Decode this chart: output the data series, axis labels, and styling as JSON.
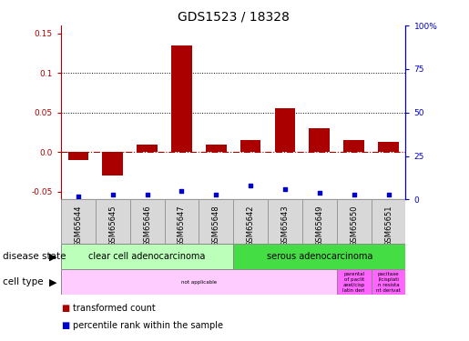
{
  "title": "GDS1523 / 18328",
  "samples": [
    "GSM65644",
    "GSM65645",
    "GSM65646",
    "GSM65647",
    "GSM65648",
    "GSM65642",
    "GSM65643",
    "GSM65649",
    "GSM65650",
    "GSM65651"
  ],
  "transformed_count": [
    -0.01,
    -0.03,
    0.01,
    0.135,
    0.01,
    0.015,
    0.055,
    0.03,
    0.015,
    0.013
  ],
  "percentile_rank_raw": [
    2,
    3,
    3,
    5,
    3,
    8,
    6,
    4,
    3,
    3
  ],
  "ylim_left": [
    -0.06,
    0.16
  ],
  "ylim_right": [
    0,
    100
  ],
  "left_yticks": [
    -0.05,
    0.0,
    0.05,
    0.1,
    0.15
  ],
  "right_yticks": [
    0,
    25,
    50,
    75,
    100
  ],
  "right_ytick_labels": [
    "0",
    "25",
    "50",
    "75",
    "100%"
  ],
  "bar_color": "#aa0000",
  "dot_color": "#0000cc",
  "disease_state_labels": [
    "clear cell adenocarcinoma",
    "serous adenocarcinoma"
  ],
  "disease_state_colors": [
    "#bbffbb",
    "#44dd44"
  ],
  "cell_type_texts": [
    "not applicable",
    "parental\nof paclit\naxel/cisp\nlatin deri",
    "pacitaxe\nl/cisplati\nn resista\nnt derivat"
  ],
  "cell_type_colors": [
    "#ffccff",
    "#ff66ff",
    "#ff66ff"
  ],
  "legend_red_label": "transformed count",
  "legend_blue_label": "percentile rank within the sample",
  "background_color": "#ffffff",
  "title_fontsize": 10,
  "tick_label_fontsize": 6.5,
  "bar_width": 0.6
}
